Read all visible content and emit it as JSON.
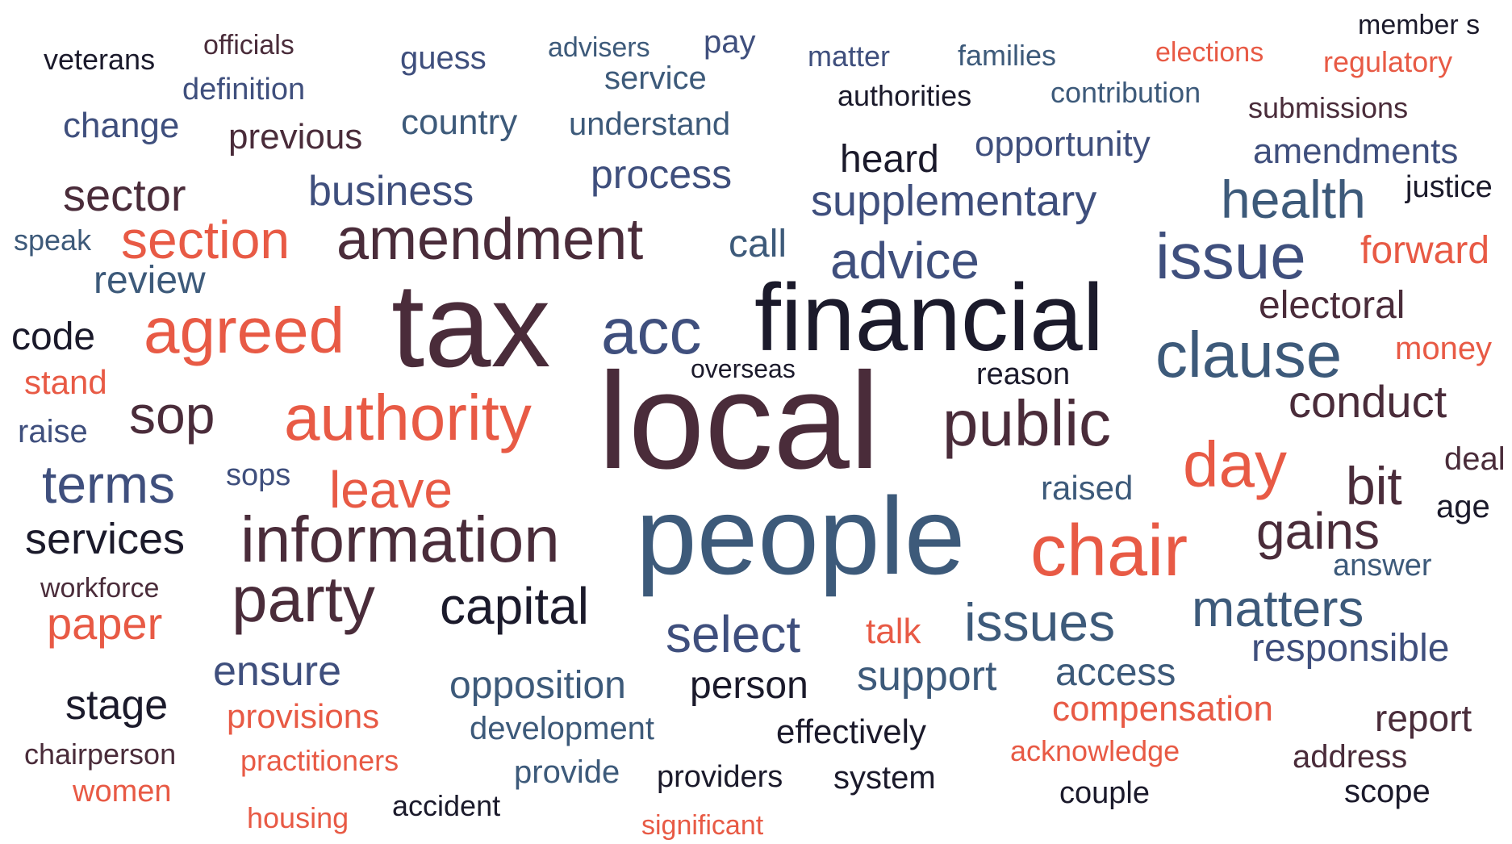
{
  "palette": {
    "dark_navy": "#1b1a2b",
    "plum": "#4a2c3a",
    "steel_blue": "#3d5a7a",
    "slate_blue": "#3f4f7d",
    "coral": "#e85a45"
  },
  "words": [
    {
      "text": "member s",
      "color": "#1b1a2b"
    },
    {
      "text": "veterans",
      "color": "#1b1a2b"
    },
    {
      "text": "officials",
      "color": "#4a2c3a"
    },
    {
      "text": "guess",
      "color": "#3f4f7d"
    },
    {
      "text": "advisers",
      "color": "#3d5a7a"
    },
    {
      "text": "pay",
      "color": "#3f4f7d"
    },
    {
      "text": "matter",
      "color": "#3f4f7d"
    },
    {
      "text": "families",
      "color": "#3d5a7a"
    },
    {
      "text": "elections",
      "color": "#e85a45"
    },
    {
      "text": "regulatory",
      "color": "#e85a45"
    },
    {
      "text": "definition",
      "color": "#3f4f7d"
    },
    {
      "text": "service",
      "color": "#3d5a7a"
    },
    {
      "text": "authorities",
      "color": "#1b1a2b"
    },
    {
      "text": "contribution",
      "color": "#3d5a7a"
    },
    {
      "text": "submissions",
      "color": "#4a2c3a"
    },
    {
      "text": "change",
      "color": "#3f4f7d"
    },
    {
      "text": "previous",
      "color": "#4a2c3a"
    },
    {
      "text": "country",
      "color": "#3d5a7a"
    },
    {
      "text": "understand",
      "color": "#3d5a7a"
    },
    {
      "text": "opportunity",
      "color": "#3f4f7d"
    },
    {
      "text": "amendments",
      "color": "#3f4f7d"
    },
    {
      "text": "heard",
      "color": "#1b1a2b"
    },
    {
      "text": "process",
      "color": "#3f4f7d"
    },
    {
      "text": "sector",
      "color": "#4a2c3a"
    },
    {
      "text": "business",
      "color": "#3f4f7d"
    },
    {
      "text": "supplementary",
      "color": "#3f4f7d"
    },
    {
      "text": "health",
      "color": "#3d5a7a"
    },
    {
      "text": "justice",
      "color": "#1b1a2b"
    },
    {
      "text": "speak",
      "color": "#3d5a7a"
    },
    {
      "text": "section",
      "color": "#e85a45"
    },
    {
      "text": "amendment",
      "color": "#4a2c3a"
    },
    {
      "text": "call",
      "color": "#3d5a7a"
    },
    {
      "text": "advice",
      "color": "#3f4f7d"
    },
    {
      "text": "issue",
      "color": "#3f4f7d"
    },
    {
      "text": "forward",
      "color": "#e85a45"
    },
    {
      "text": "review",
      "color": "#3d5a7a"
    },
    {
      "text": "tax",
      "color": "#4a2c3a"
    },
    {
      "text": "financial",
      "color": "#1b1a2b"
    },
    {
      "text": "electoral",
      "color": "#4a2c3a"
    },
    {
      "text": "code",
      "color": "#1b1a2b"
    },
    {
      "text": "agreed",
      "color": "#e85a45"
    },
    {
      "text": "acc",
      "color": "#3f4f7d"
    },
    {
      "text": "clause",
      "color": "#3d5a7a"
    },
    {
      "text": "money",
      "color": "#e85a45"
    },
    {
      "text": "overseas",
      "color": "#1b1a2b"
    },
    {
      "text": "reason",
      "color": "#1b1a2b"
    },
    {
      "text": "stand",
      "color": "#e85a45"
    },
    {
      "text": "conduct",
      "color": "#4a2c3a"
    },
    {
      "text": "sop",
      "color": "#4a2c3a"
    },
    {
      "text": "authority",
      "color": "#e85a45"
    },
    {
      "text": "local",
      "color": "#4a2c3a"
    },
    {
      "text": "public",
      "color": "#4a2c3a"
    },
    {
      "text": "raise",
      "color": "#3f4f7d"
    },
    {
      "text": "day",
      "color": "#e85a45"
    },
    {
      "text": "deal",
      "color": "#4a2c3a"
    },
    {
      "text": "terms",
      "color": "#3f4f7d"
    },
    {
      "text": "sops",
      "color": "#3f4f7d"
    },
    {
      "text": "leave",
      "color": "#e85a45"
    },
    {
      "text": "raised",
      "color": "#3d5a7a"
    },
    {
      "text": "bit",
      "color": "#4a2c3a"
    },
    {
      "text": "age",
      "color": "#1b1a2b"
    },
    {
      "text": "services",
      "color": "#1b1a2b"
    },
    {
      "text": "information",
      "color": "#4a2c3a"
    },
    {
      "text": "people",
      "color": "#3d5a7a"
    },
    {
      "text": "chair",
      "color": "#e85a45"
    },
    {
      "text": "gains",
      "color": "#4a2c3a"
    },
    {
      "text": "answer",
      "color": "#3d5a7a"
    },
    {
      "text": "workforce",
      "color": "#4a2c3a"
    },
    {
      "text": "party",
      "color": "#4a2c3a"
    },
    {
      "text": "capital",
      "color": "#1b1a2b"
    },
    {
      "text": "matters",
      "color": "#3d5a7a"
    },
    {
      "text": "paper",
      "color": "#e85a45"
    },
    {
      "text": "select",
      "color": "#3f4f7d"
    },
    {
      "text": "talk",
      "color": "#e85a45"
    },
    {
      "text": "issues",
      "color": "#3d5a7a"
    },
    {
      "text": "responsible",
      "color": "#3f4f7d"
    },
    {
      "text": "ensure",
      "color": "#3f4f7d"
    },
    {
      "text": "access",
      "color": "#3d5a7a"
    },
    {
      "text": "support",
      "color": "#3d5a7a"
    },
    {
      "text": "opposition",
      "color": "#3d5a7a"
    },
    {
      "text": "person",
      "color": "#1b1a2b"
    },
    {
      "text": "stage",
      "color": "#1b1a2b"
    },
    {
      "text": "compensation",
      "color": "#e85a45"
    },
    {
      "text": "report",
      "color": "#4a2c3a"
    },
    {
      "text": "provisions",
      "color": "#e85a45"
    },
    {
      "text": "development",
      "color": "#3d5a7a"
    },
    {
      "text": "effectively",
      "color": "#1b1a2b"
    },
    {
      "text": "acknowledge",
      "color": "#e85a45"
    },
    {
      "text": "chairperson",
      "color": "#4a2c3a"
    },
    {
      "text": "address",
      "color": "#4a2c3a"
    },
    {
      "text": "practitioners",
      "color": "#e85a45"
    },
    {
      "text": "provide",
      "color": "#3d5a7a"
    },
    {
      "text": "providers",
      "color": "#1b1a2b"
    },
    {
      "text": "system",
      "color": "#1b1a2b"
    },
    {
      "text": "women",
      "color": "#e85a45"
    },
    {
      "text": "couple",
      "color": "#1b1a2b"
    },
    {
      "text": "scope",
      "color": "#1b1a2b"
    },
    {
      "text": "housing",
      "color": "#e85a45"
    },
    {
      "text": "accident",
      "color": "#1b1a2b"
    },
    {
      "text": "significant",
      "color": "#e85a45"
    }
  ]
}
